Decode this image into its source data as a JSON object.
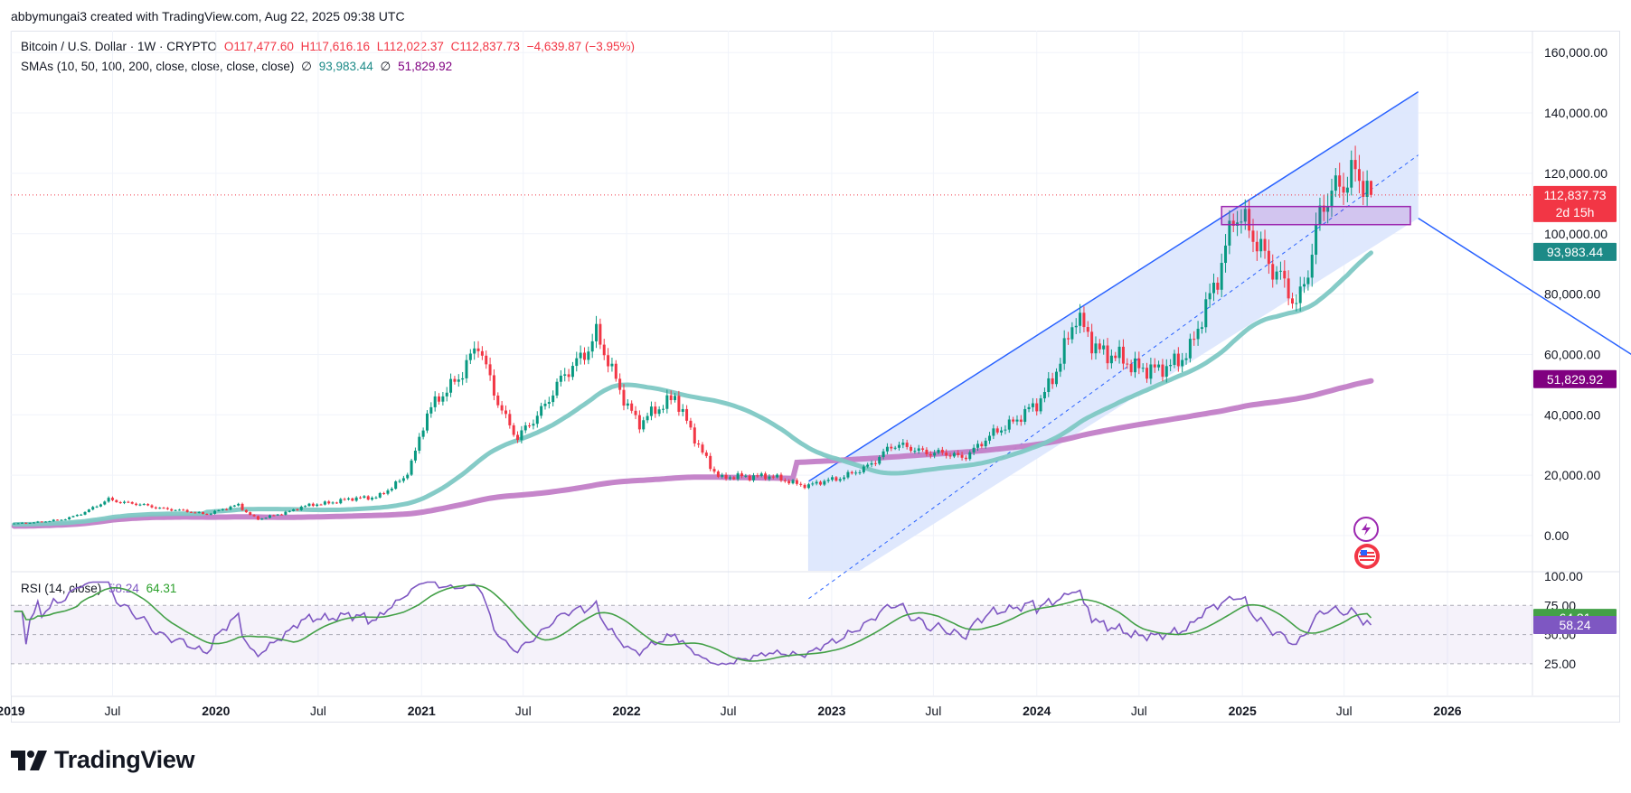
{
  "header": {
    "attribution": "abbymungai3 created with TradingView.com, Aug 22, 2025 09:38 UTC"
  },
  "legend": {
    "symbol": "Bitcoin / U.S. Dollar · 1W · CRYPTO",
    "open": "O117,477.60",
    "high": "H117,616.16",
    "low": "L112,022.37",
    "close": "C112,837.73",
    "change": "−4,639.87 (−3.95%)",
    "sma_label": "SMAs (10, 50, 100, 200, close, close, close, close)",
    "sma_a_symbol": "∅",
    "sma_a_value": "93,983.44",
    "sma_b_symbol": "∅",
    "sma_b_value": "51,829.92",
    "rsi_label": "RSI (14, close)",
    "rsi_value": "58.24",
    "rsi_ma_value": "64.31"
  },
  "price_axis": {
    "ticks": [
      "160,000.00",
      "140,000.00",
      "120,000.00",
      "100,000.00",
      "80,000.00",
      "60,000.00",
      "40,000.00",
      "20,000.00",
      "0.00"
    ]
  },
  "rsi_axis": {
    "ticks": [
      "100.00",
      "75.00",
      "50.00",
      "25.00"
    ]
  },
  "tags": {
    "price": "112,837.73",
    "countdown": "2d 15h",
    "sma_a": "93,983.44",
    "sma_b": "51,829.92",
    "rsi_ma": "64.31",
    "rsi": "58.24"
  },
  "time_axis": {
    "labels": [
      {
        "text": "2019",
        "year": true
      },
      {
        "text": "Jul",
        "year": false
      },
      {
        "text": "2020",
        "year": true
      },
      {
        "text": "Jul",
        "year": false
      },
      {
        "text": "2021",
        "year": true
      },
      {
        "text": "Jul",
        "year": false
      },
      {
        "text": "2022",
        "year": true
      },
      {
        "text": "Jul",
        "year": false
      },
      {
        "text": "2023",
        "year": true
      },
      {
        "text": "Jul",
        "year": false
      },
      {
        "text": "2024",
        "year": true
      },
      {
        "text": "Jul",
        "year": false
      },
      {
        "text": "2025",
        "year": true
      },
      {
        "text": "Jul",
        "year": false
      },
      {
        "text": "2026",
        "year": true
      }
    ]
  },
  "branding": {
    "logo_text": "TradingView"
  },
  "colors": {
    "up": "#089981",
    "down": "#f23645",
    "sma_a": "#7ec8c4",
    "sma_b": "#c27ec7",
    "channel_line": "#2962ff",
    "channel_fill": "#dbe5fd",
    "zone": "#9c27b0",
    "rsi_line": "#7e57c2",
    "rsi_ma": "#43a047"
  },
  "chart_data": {
    "type": "candlestick",
    "instrument": "Bitcoin / U.S. Dollar · 1W · CRYPTO",
    "ylim": [
      -5000,
      165000
    ],
    "series_close_anchors": [
      {
        "x": "2019-01-01",
        "y": 3800
      },
      {
        "x": "2019-04-01",
        "y": 5200
      },
      {
        "x": "2019-06-24",
        "y": 12000
      },
      {
        "x": "2019-09-01",
        "y": 9800
      },
      {
        "x": "2019-12-15",
        "y": 7200
      },
      {
        "x": "2020-02-10",
        "y": 10200
      },
      {
        "x": "2020-03-16",
        "y": 5400
      },
      {
        "x": "2020-06-01",
        "y": 9500
      },
      {
        "x": "2020-08-15",
        "y": 11800
      },
      {
        "x": "2020-10-15",
        "y": 13000
      },
      {
        "x": "2020-12-01",
        "y": 19000
      },
      {
        "x": "2021-01-08",
        "y": 40000
      },
      {
        "x": "2021-04-12",
        "y": 63000
      },
      {
        "x": "2021-06-21",
        "y": 32000
      },
      {
        "x": "2021-08-23",
        "y": 48000
      },
      {
        "x": "2021-11-08",
        "y": 67000
      },
      {
        "x": "2022-01-24",
        "y": 37000
      },
      {
        "x": "2022-03-28",
        "y": 47000
      },
      {
        "x": "2022-06-18",
        "y": 19000
      },
      {
        "x": "2022-09-01",
        "y": 20000
      },
      {
        "x": "2022-11-21",
        "y": 16500
      },
      {
        "x": "2023-03-01",
        "y": 22000
      },
      {
        "x": "2023-04-15",
        "y": 30000
      },
      {
        "x": "2023-08-20",
        "y": 26000
      },
      {
        "x": "2023-11-01",
        "y": 36000
      },
      {
        "x": "2024-01-01",
        "y": 43000
      },
      {
        "x": "2024-03-11",
        "y": 72000
      },
      {
        "x": "2024-05-01",
        "y": 60000
      },
      {
        "x": "2024-08-05",
        "y": 54000
      },
      {
        "x": "2024-10-01",
        "y": 62000
      },
      {
        "x": "2024-12-16",
        "y": 106000
      },
      {
        "x": "2025-02-01",
        "y": 97000
      },
      {
        "x": "2025-04-07",
        "y": 76000
      },
      {
        "x": "2025-05-20",
        "y": 107000
      },
      {
        "x": "2025-07-14",
        "y": 122000
      },
      {
        "x": "2025-08-18",
        "y": 112837.73
      }
    ],
    "series": [
      {
        "name": "SMA 50",
        "last": 93983.44
      },
      {
        "name": "SMA 200",
        "last": 51829.92
      }
    ],
    "channel": {
      "from": {
        "x": "2022-11-21",
        "y": 18000
      },
      "to": {
        "x": "2025-11-10",
        "y": 147000
      }
    },
    "resistance_zone": {
      "from": "2024-11-25",
      "to": "2025-10-27",
      "low": 103000,
      "high": 109000
    },
    "last_price": 112837.73,
    "rsi": {
      "period": 14,
      "value": 58.24,
      "ma_value": 64.31,
      "ylim": [
        20,
        100
      ],
      "bands": [
        70,
        50,
        30
      ]
    }
  }
}
